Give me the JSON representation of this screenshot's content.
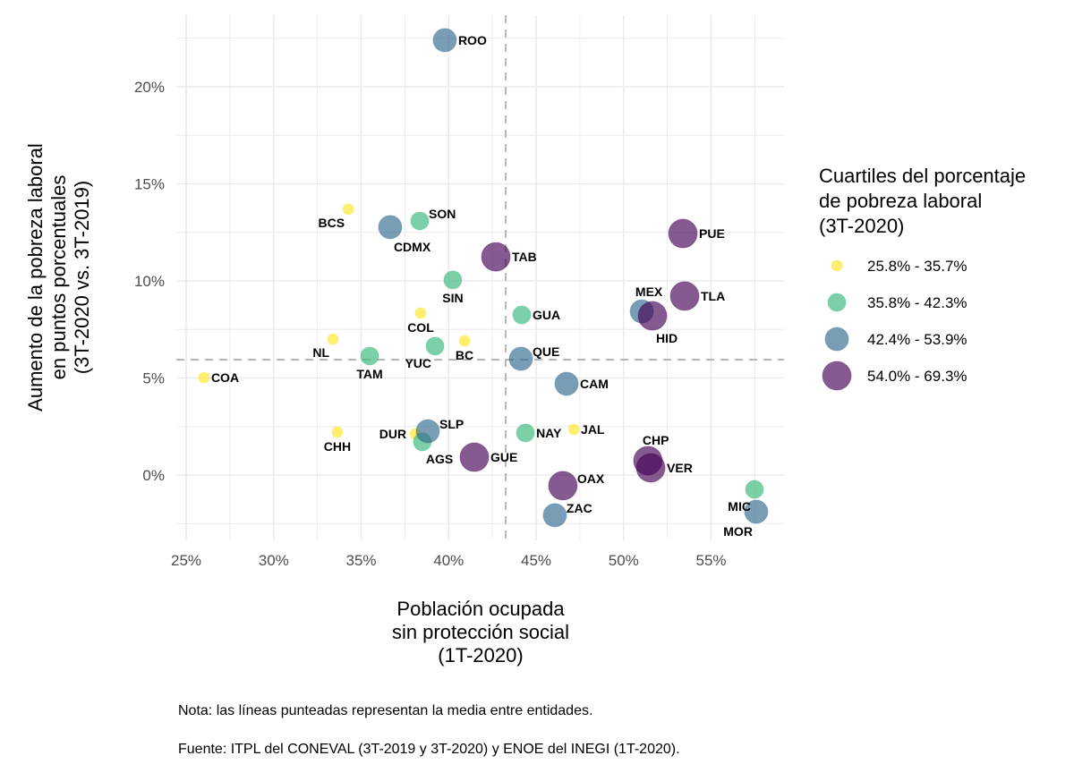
{
  "chart_data": {
    "type": "scatter",
    "xlabel": [
      "Población ocupada",
      "sin protección social",
      "(1T-2020)"
    ],
    "ylabel": [
      "Aumento de la pobreza laboral",
      "en puntos porcentuales",
      "(3T-2020 vs. 3T-2019)"
    ],
    "xlim": [
      24.5,
      58.5
    ],
    "ylim": [
      -3.3,
      23.8
    ],
    "x_ticks": [
      25,
      30,
      35,
      40,
      45,
      50,
      55
    ],
    "x_tick_labels": [
      "25%",
      "30%",
      "35%",
      "40%",
      "45%",
      "50%",
      "55%"
    ],
    "y_ticks": [
      0,
      5,
      10,
      15,
      20
    ],
    "y_tick_labels": [
      "0%",
      "5%",
      "10%",
      "15%",
      "20%"
    ],
    "grid": true,
    "reference_lines": {
      "x_mean": 43.26,
      "y_mean": 5.94,
      "style": "dashed"
    },
    "legend": {
      "title": [
        "Cuartiles del porcentaje",
        "de pobreza laboral",
        "(3T-2020)"
      ],
      "placement": "right",
      "entries": [
        {
          "label": "25.8% - 35.7%",
          "quartile": 1,
          "color": "#FDE725"
        },
        {
          "label": "35.8% - 42.3%",
          "quartile": 2,
          "color": "#35B779"
        },
        {
          "label": "42.4% - 53.9%",
          "quartile": 3,
          "color": "#31688E"
        },
        {
          "label": "54.0% - 69.3%",
          "quartile": 4,
          "color": "#440154"
        }
      ]
    },
    "points": [
      {
        "label": "ROO",
        "x": 39.78,
        "y": 22.4,
        "quartile": 3,
        "label_pos": "right"
      },
      {
        "label": "BCS",
        "x": 34.26,
        "y": 13.69,
        "quartile": 1,
        "label_pos": "below-left"
      },
      {
        "label": "CDMX",
        "x": 36.66,
        "y": 12.77,
        "quartile": 3,
        "label_pos": "below-right"
      },
      {
        "label": "SON",
        "x": 38.35,
        "y": 13.09,
        "quartile": 2,
        "label_pos": "right-up"
      },
      {
        "label": "TAB",
        "x": 42.7,
        "y": 11.24,
        "quartile": 4,
        "label_pos": "right"
      },
      {
        "label": "SIN",
        "x": 40.24,
        "y": 10.05,
        "quartile": 2,
        "label_pos": "below"
      },
      {
        "label": "COL",
        "x": 38.4,
        "y": 8.34,
        "quartile": 1,
        "label_pos": "below"
      },
      {
        "label": "GUA",
        "x": 44.18,
        "y": 8.25,
        "quartile": 2,
        "label_pos": "right"
      },
      {
        "label": "MEX",
        "x": 51.04,
        "y": 8.43,
        "quartile": 3,
        "label_pos": "above"
      },
      {
        "label": "HID",
        "x": 51.65,
        "y": 8.2,
        "quartile": 4,
        "label_pos": "below-right"
      },
      {
        "label": "TLA",
        "x": 53.49,
        "y": 9.22,
        "quartile": 4,
        "label_pos": "right"
      },
      {
        "label": "PUE",
        "x": 53.39,
        "y": 12.44,
        "quartile": 4,
        "label_pos": "right"
      },
      {
        "label": "NL",
        "x": 33.39,
        "y": 7.0,
        "quartile": 1,
        "label_pos": "below-left"
      },
      {
        "label": "TAM",
        "x": 35.49,
        "y": 6.13,
        "quartile": 2,
        "label_pos": "below"
      },
      {
        "label": "YUC",
        "x": 39.22,
        "y": 6.64,
        "quartile": 2,
        "label_pos": "below-left"
      },
      {
        "label": "BC",
        "x": 40.91,
        "y": 6.91,
        "quartile": 1,
        "label_pos": "below"
      },
      {
        "label": "QUE",
        "x": 44.13,
        "y": 5.99,
        "quartile": 3,
        "label_pos": "right-up"
      },
      {
        "label": "COA",
        "x": 26.02,
        "y": 5.02,
        "quartile": 1,
        "label_pos": "right"
      },
      {
        "label": "CAM",
        "x": 46.74,
        "y": 4.7,
        "quartile": 3,
        "label_pos": "right"
      },
      {
        "label": "CHH",
        "x": 33.64,
        "y": 2.21,
        "quartile": 1,
        "label_pos": "below"
      },
      {
        "label": "DUR",
        "x": 38.1,
        "y": 2.12,
        "quartile": 1,
        "label_pos": "left"
      },
      {
        "label": "AGS",
        "x": 38.5,
        "y": 1.71,
        "quartile": 2,
        "label_pos": "below-right"
      },
      {
        "label": "SLP",
        "x": 38.81,
        "y": 2.26,
        "quartile": 3,
        "label_pos": "right-up"
      },
      {
        "label": "GUE",
        "x": 41.47,
        "y": 0.92,
        "quartile": 4,
        "label_pos": "right"
      },
      {
        "label": "NAY",
        "x": 44.39,
        "y": 2.17,
        "quartile": 2,
        "label_pos": "right"
      },
      {
        "label": "JAL",
        "x": 47.15,
        "y": 2.35,
        "quartile": 1,
        "label_pos": "right"
      },
      {
        "label": "OAX",
        "x": 46.53,
        "y": -0.55,
        "quartile": 4,
        "label_pos": "right-up"
      },
      {
        "label": "ZAC",
        "x": 46.07,
        "y": -2.07,
        "quartile": 3,
        "label_pos": "right-up"
      },
      {
        "label": "CHP",
        "x": 51.39,
        "y": 0.74,
        "quartile": 4,
        "label_pos": "above-right"
      },
      {
        "label": "VER",
        "x": 51.55,
        "y": 0.37,
        "quartile": 4,
        "label_pos": "right"
      },
      {
        "label": "MIC",
        "x": 57.48,
        "y": -0.74,
        "quartile": 2,
        "label_pos": "below-left"
      },
      {
        "label": "MOR",
        "x": 57.58,
        "y": -1.89,
        "quartile": 3,
        "label_pos": "below-left"
      }
    ]
  },
  "captions": {
    "note": "Nota: las líneas punteadas representan la media entre entidades.",
    "source": "Fuente: ITPL del CONEVAL (3T-2019 y 3T-2020) y ENOE del INEGI (1T-2020)."
  }
}
